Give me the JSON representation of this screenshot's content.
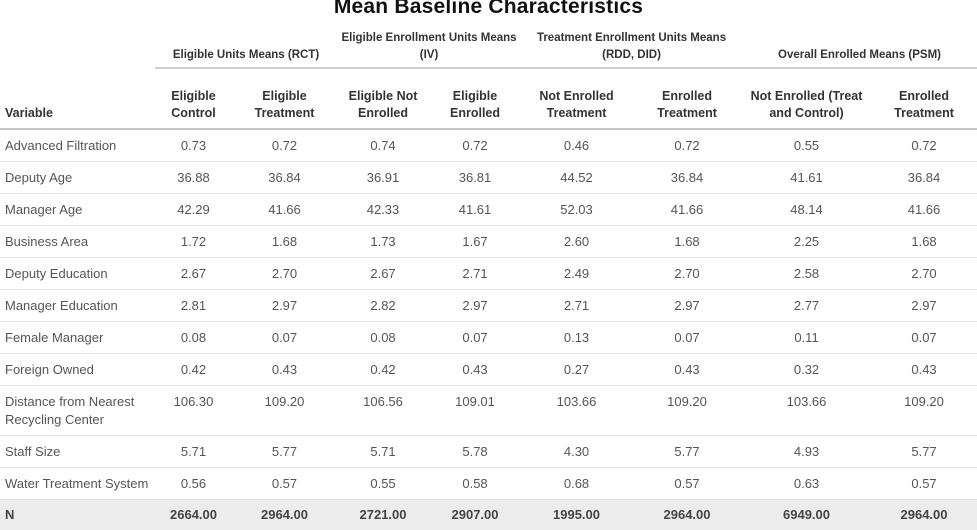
{
  "title": "Mean Baseline Characteristics",
  "groups": [
    {
      "label": "Eligible Units Means (RCT)"
    },
    {
      "label": "Eligible Enrollment Units Means (IV)"
    },
    {
      "label": "Treatment Enrollment Units Means (RDD, DID)"
    },
    {
      "label": "Overall Enrolled Means (PSM)"
    }
  ],
  "columns": [
    "Variable",
    "Eligible Control",
    "Eligible Treatment",
    "Eligible Not Enrolled",
    "Eligible Enrolled",
    "Not Enrolled Treatment",
    "Enrolled Treatment",
    "Not Enrolled (Treat and Control)",
    "Enrolled Treatment"
  ],
  "rows": [
    [
      "Advanced Filtration",
      "0.73",
      "0.72",
      "0.74",
      "0.72",
      "0.46",
      "0.72",
      "0.55",
      "0.72"
    ],
    [
      "Deputy Age",
      "36.88",
      "36.84",
      "36.91",
      "36.81",
      "44.52",
      "36.84",
      "41.61",
      "36.84"
    ],
    [
      "Manager Age",
      "42.29",
      "41.66",
      "42.33",
      "41.61",
      "52.03",
      "41.66",
      "48.14",
      "41.66"
    ],
    [
      "Business Area",
      "1.72",
      "1.68",
      "1.73",
      "1.67",
      "2.60",
      "1.68",
      "2.25",
      "1.68"
    ],
    [
      "Deputy Education",
      "2.67",
      "2.70",
      "2.67",
      "2.71",
      "2.49",
      "2.70",
      "2.58",
      "2.70"
    ],
    [
      "Manager Education",
      "2.81",
      "2.97",
      "2.82",
      "2.97",
      "2.71",
      "2.97",
      "2.77",
      "2.97"
    ],
    [
      "Female Manager",
      "0.08",
      "0.07",
      "0.08",
      "0.07",
      "0.13",
      "0.07",
      "0.11",
      "0.07"
    ],
    [
      "Foreign Owned",
      "0.42",
      "0.43",
      "0.42",
      "0.43",
      "0.27",
      "0.43",
      "0.32",
      "0.43"
    ],
    [
      "Distance from Nearest Recycling Center",
      "106.30",
      "109.20",
      "106.56",
      "109.01",
      "103.66",
      "109.20",
      "103.66",
      "109.20"
    ],
    [
      "Staff Size",
      "5.71",
      "5.77",
      "5.71",
      "5.78",
      "4.30",
      "5.77",
      "4.93",
      "5.77"
    ],
    [
      "Water Treatment System",
      "0.56",
      "0.57",
      "0.55",
      "0.58",
      "0.68",
      "0.57",
      "0.63",
      "0.57"
    ]
  ],
  "n_row": [
    "N",
    "2664.00",
    "2964.00",
    "2721.00",
    "2907.00",
    "1995.00",
    "2964.00",
    "6949.00",
    "2964.00"
  ]
}
